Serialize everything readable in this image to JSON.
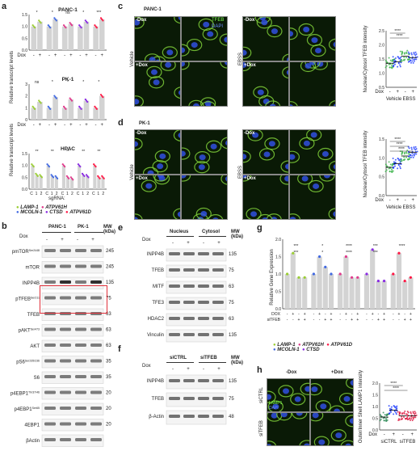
{
  "panel_labels": {
    "a": "a",
    "b": "b",
    "c": "c",
    "d": "d",
    "e": "e",
    "f": "f",
    "g": "g",
    "h": "h"
  },
  "colors": {
    "lamp1": "#9acd32",
    "mcoln1": "#4169e1",
    "atpv61h": "#e03a8c",
    "ctsd": "#8a2be2",
    "atpv61d": "#ff1744",
    "vehicle": "#3cb44b",
    "ebss": "#1e3cff",
    "siCTRL": "#2e8b57",
    "siTFEB": "#dc143c"
  },
  "panel_a": {
    "ylabel": "Relative transcript levels",
    "charts": [
      {
        "title": "PANC-1",
        "yticks": [
          "1.5",
          "1.0",
          "0.5",
          "0.0"
        ],
        "sig": [
          "*",
          "*",
          "ns",
          "*",
          "***"
        ]
      },
      {
        "title": "PK-1",
        "yticks": [
          "3",
          "2",
          "1",
          "0"
        ],
        "sig": [
          "ns",
          "*",
          "*",
          "*",
          "*"
        ]
      },
      {
        "title": "HPAC",
        "yticks": [
          "1.5",
          "1.0",
          "0.5",
          "0.0"
        ],
        "sig": [
          "**",
          "**",
          "**",
          "**",
          "**"
        ]
      }
    ],
    "dox_label": "Dox",
    "pm": [
      "-",
      "+"
    ],
    "hpac_x": [
      "C",
      "1",
      "2"
    ],
    "sgrna_label": "sgRNA:",
    "legend": [
      "LAMP-1",
      "MCOLN-1",
      "ATPV61H",
      "CTSD",
      "ATPV61D"
    ]
  },
  "panel_b": {
    "groups": [
      "PANC-1",
      "PK-1"
    ],
    "dox_label": "Dox",
    "mw_label": "MW (kDa)",
    "dox": [
      "-",
      "+",
      "-",
      "+"
    ],
    "rows": [
      {
        "label": "pmTOR",
        "sup": "Ser2448",
        "mw": "245"
      },
      {
        "label": "mTOR",
        "sup": "",
        "mw": "245"
      },
      {
        "label": "INPP4B",
        "sup": "",
        "mw": "135"
      },
      {
        "label": "pTFEB",
        "sup": "Ser211",
        "mw": "75"
      },
      {
        "label": "TFEB",
        "sup": "",
        "mw": "63"
      },
      {
        "label": "pAKT",
        "sup": "Ser473",
        "mw": "63"
      },
      {
        "label": "AKT",
        "sup": "",
        "mw": "63"
      },
      {
        "label": "pS6",
        "sup": "Ser235/236",
        "mw": "35"
      },
      {
        "label": "S6",
        "sup": "",
        "mw": "35"
      },
      {
        "label": "p4EBP1",
        "sup": "Thr37/46",
        "mw": "20"
      },
      {
        "label": "p4EBP1",
        "sup": "Ser65",
        "mw": "20"
      },
      {
        "label": "4EBP1",
        "sup": "",
        "mw": "20"
      },
      {
        "label": "βActin",
        "sup": "",
        "mw": ""
      }
    ],
    "extra_mw": [
      "63",
      "48"
    ]
  },
  "panel_c": {
    "cell_line": "PANC-1",
    "dox_minus": "-Dox",
    "dox_plus": "+Dox",
    "tfeb": "TFEB",
    "dapi": "DAPI",
    "vehicle": "Vehicle",
    "ebss": "EBSS",
    "ylabel": "Nuclear/Cytosol TFEB intensity",
    "yticks": [
      "2.5",
      "2.0",
      "1.5",
      "1.0",
      "0.5"
    ],
    "sig": [
      "****",
      "****"
    ],
    "x_dox": "Dox",
    "pm": [
      "-",
      "+",
      "-",
      "+"
    ],
    "groups": [
      "Vehicle",
      "EBSS"
    ]
  },
  "panel_d": {
    "cell_line": "PK-1",
    "dox_minus": "-Dox",
    "dox_plus": "+Dox",
    "vehicle": "Vehicle",
    "ebss": "EBSS",
    "ylabel": "Nuclear/Cytosol TFEB intensity",
    "yticks": [
      "1.5",
      "1.0",
      "0.5",
      "0.0"
    ],
    "sig": [
      "****",
      "****",
      "****"
    ],
    "x_dox": "Dox",
    "pm": [
      "-",
      "+",
      "-",
      "+"
    ],
    "groups": [
      "Vehicle",
      "EBSS"
    ]
  },
  "panel_e": {
    "groups": [
      "Nucleus",
      "Cytosol"
    ],
    "dox_label": "Dox",
    "dox": [
      "-",
      "+",
      "-",
      "+"
    ],
    "mw_label": "MW (kDa)",
    "rows": [
      {
        "label": "INPP4B",
        "mw": "135"
      },
      {
        "label": "TFEB",
        "mw": "75"
      },
      {
        "label": "MITF",
        "mw": "63"
      },
      {
        "label": "TFE3",
        "mw": "75"
      },
      {
        "label": "HDAC2",
        "mw": "63"
      },
      {
        "label": "Vinculin",
        "mw": "135"
      }
    ],
    "extra_mw": [
      "100",
      "75",
      "63",
      "100",
      "75"
    ]
  },
  "panel_f": {
    "groups": [
      "siCTRL",
      "siTFEB"
    ],
    "dox_label": "Dox",
    "dox": [
      "-",
      "+",
      "-",
      "+"
    ],
    "mw_label": "MW (kDa)",
    "rows": [
      {
        "label": "INPP4B",
        "mw": "135"
      },
      {
        "label": "TFEB",
        "mw": "75"
      },
      {
        "label": "β-Actin",
        "mw": "48"
      }
    ],
    "extra_mw": [
      "100",
      "63"
    ]
  },
  "panel_g": {
    "ylabel": "Relative Gene Expression",
    "yticks": [
      "2.0",
      "1.5",
      "1.0",
      "0.5",
      "0.0"
    ],
    "sig": [
      "***",
      "***",
      "*",
      "*",
      "****",
      "****",
      "***",
      "***",
      "****"
    ],
    "row_labels": [
      "DOX",
      "siTFEB"
    ],
    "dox_row": [
      "-",
      "+",
      "-",
      "+"
    ],
    "si_row": [
      "-",
      "-",
      "+",
      "+"
    ],
    "legend": [
      "LAMP-1",
      "ATPV61H",
      "ATPV61D",
      "MCOLN-1",
      "CTSD"
    ]
  },
  "panel_h": {
    "dox_minus": "-Dox",
    "dox_plus": "+Dox",
    "siCTRL": "siCTRL",
    "siTFEB": "siTFEB",
    "lamp1": "LAMP1",
    "dapi": "DAPI",
    "ylabel": "Outer/Inner Shell LAMP1 intensity",
    "yticks": [
      "2.0",
      "1.5",
      "1.0",
      "0.5",
      "0.0"
    ],
    "sig": [
      "****",
      "****"
    ],
    "x_dox": "Dox",
    "pm": [
      "-",
      "+",
      "-",
      "+"
    ],
    "groups": [
      "siCTRL",
      "siTFEB"
    ]
  },
  "chart_data": [
    {
      "type": "bar",
      "panel": "a",
      "title": "PANC-1",
      "categories": [
        "LAMP-1",
        "MCOLN-1",
        "ATPV61H",
        "CTSD",
        "ATPV61D"
      ],
      "series": [
        {
          "name": "-Dox",
          "values": [
            1.0,
            1.0,
            1.0,
            1.0,
            1.0
          ]
        },
        {
          "name": "+Dox",
          "values": [
            1.2,
            1.3,
            1.1,
            1.2,
            1.3
          ]
        }
      ],
      "ylim": [
        0,
        1.5
      ]
    },
    {
      "type": "bar",
      "panel": "a",
      "title": "PK-1",
      "categories": [
        "LAMP-1",
        "MCOLN-1",
        "ATPV61H",
        "CTSD",
        "ATPV61D"
      ],
      "series": [
        {
          "name": "-Dox",
          "values": [
            1.0,
            1.0,
            1.0,
            1.0,
            1.0
          ]
        },
        {
          "name": "+Dox",
          "values": [
            1.5,
            1.9,
            1.7,
            1.6,
            2.0
          ]
        }
      ],
      "ylim": [
        0,
        3
      ]
    },
    {
      "type": "bar",
      "panel": "a",
      "title": "HPAC",
      "categories": [
        "LAMP-1",
        "MCOLN-1",
        "ATPV61H",
        "CTSD",
        "ATPV61D"
      ],
      "series": [
        {
          "name": "C",
          "values": [
            1.0,
            1.0,
            1.0,
            1.0,
            1.0
          ]
        },
        {
          "name": "1",
          "values": [
            0.6,
            0.55,
            0.5,
            0.6,
            0.5
          ]
        },
        {
          "name": "2",
          "values": [
            0.55,
            0.5,
            0.45,
            0.55,
            0.5
          ]
        }
      ],
      "ylim": [
        0,
        1.5
      ]
    },
    {
      "type": "scatter",
      "panel": "c",
      "categories": [
        "Vehicle -",
        "Vehicle +",
        "EBSS -",
        "EBSS +"
      ],
      "values": [
        1.35,
        1.4,
        1.6,
        1.55
      ],
      "ylim": [
        0.5,
        2.5
      ]
    },
    {
      "type": "scatter",
      "panel": "d",
      "categories": [
        "Vehicle -",
        "Vehicle +",
        "EBSS -",
        "EBSS +"
      ],
      "values": [
        0.75,
        0.85,
        1.05,
        1.15
      ],
      "ylim": [
        0,
        1.5
      ]
    },
    {
      "type": "bar",
      "panel": "g",
      "categories": [
        "LAMP-1",
        "MCOLN-1",
        "ATPV61H",
        "CTSD",
        "ATPV61D"
      ],
      "series": [
        {
          "name": "-/-",
          "values": [
            1.0,
            1.0,
            1.0,
            1.0,
            1.0
          ]
        },
        {
          "name": "+/-",
          "values": [
            1.6,
            1.5,
            1.5,
            1.7,
            1.6
          ]
        },
        {
          "name": "-/+",
          "values": [
            0.9,
            1.2,
            0.9,
            0.8,
            0.8
          ]
        },
        {
          "name": "+/+",
          "values": [
            0.9,
            1.0,
            0.9,
            0.8,
            0.9
          ]
        }
      ],
      "ylim": [
        0,
        2.0
      ]
    },
    {
      "type": "scatter",
      "panel": "h",
      "categories": [
        "siCTRL -",
        "siCTRL +",
        "siTFEB -",
        "siTFEB +"
      ],
      "values": [
        0.55,
        0.85,
        0.6,
        0.6
      ],
      "ylim": [
        0,
        2.0
      ]
    }
  ]
}
